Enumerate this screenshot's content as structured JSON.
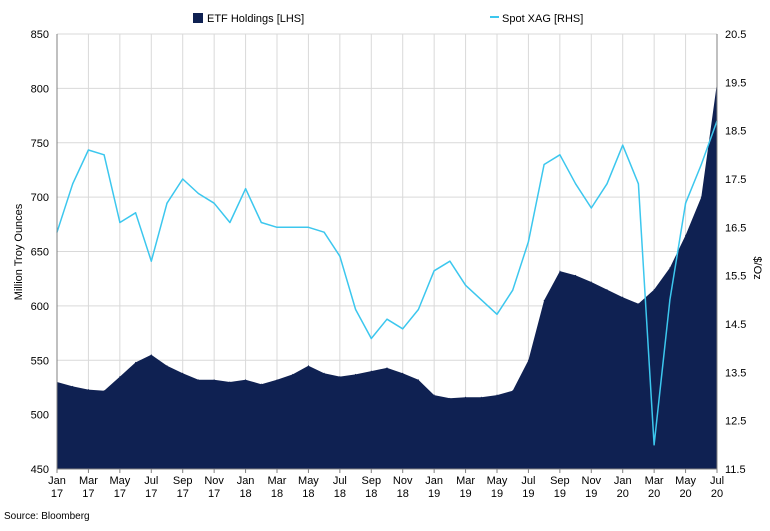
{
  "chart_data": {
    "type": "area",
    "title": "",
    "source": "Source: Bloomberg",
    "ylabel_left": "Million Troy  Ounces",
    "ylabel_right": "$/Oz",
    "ylim_left": [
      450,
      850
    ],
    "ylim_right": [
      11.5,
      20.5
    ],
    "yticks_left": [
      "850",
      "800",
      "750",
      "700",
      "650",
      "600",
      "550",
      "500",
      "450"
    ],
    "yticks_right": [
      "20.5",
      "19.5",
      "18.5",
      "17.5",
      "16.5",
      "15.5",
      "14.5",
      "13.5",
      "12.5",
      "11.5"
    ],
    "grid": true,
    "legend_position": "top",
    "x_categories": [
      [
        "Jan",
        "17"
      ],
      [
        "Mar",
        "17"
      ],
      [
        "May",
        "17"
      ],
      [
        "Jul",
        "17"
      ],
      [
        "Sep",
        "17"
      ],
      [
        "Nov",
        "17"
      ],
      [
        "Jan",
        "18"
      ],
      [
        "Mar",
        "18"
      ],
      [
        "May",
        "18"
      ],
      [
        "Jul",
        "18"
      ],
      [
        "Sep",
        "18"
      ],
      [
        "Nov",
        "18"
      ],
      [
        "Jan",
        "19"
      ],
      [
        "Mar",
        "19"
      ],
      [
        "May",
        "19"
      ],
      [
        "Jul",
        "19"
      ],
      [
        "Sep",
        "19"
      ],
      [
        "Nov",
        "19"
      ],
      [
        "Jan",
        "20"
      ],
      [
        "Mar",
        "20"
      ],
      [
        "May",
        "20"
      ],
      [
        "Jul",
        "20"
      ]
    ],
    "series": [
      {
        "name": "ETF Holdings [LHS]",
        "axis": "left",
        "kind": "area",
        "color": "#0f2152",
        "x": [
          "2017-01",
          "2017-02",
          "2017-03",
          "2017-04",
          "2017-05",
          "2017-06",
          "2017-07",
          "2017-08",
          "2017-09",
          "2017-10",
          "2017-11",
          "2017-12",
          "2018-01",
          "2018-02",
          "2018-03",
          "2018-04",
          "2018-05",
          "2018-06",
          "2018-07",
          "2018-08",
          "2018-09",
          "2018-10",
          "2018-11",
          "2018-12",
          "2019-01",
          "2019-02",
          "2019-03",
          "2019-04",
          "2019-05",
          "2019-06",
          "2019-07",
          "2019-08",
          "2019-09",
          "2019-10",
          "2019-11",
          "2019-12",
          "2020-01",
          "2020-02",
          "2020-03",
          "2020-04",
          "2020-05",
          "2020-06",
          "2020-07"
        ],
        "values": [
          530,
          526,
          523,
          522,
          535,
          548,
          555,
          545,
          538,
          532,
          532,
          530,
          532,
          528,
          532,
          537,
          545,
          538,
          535,
          537,
          540,
          543,
          538,
          532,
          518,
          515,
          516,
          516,
          518,
          522,
          550,
          605,
          632,
          628,
          622,
          615,
          608,
          602,
          615,
          635,
          665,
          700,
          805
        ]
      },
      {
        "name": "Spot XAG [RHS]",
        "axis": "right",
        "kind": "line",
        "color": "#3cc7ee",
        "x": [
          "2017-01",
          "2017-02",
          "2017-03",
          "2017-04",
          "2017-05",
          "2017-06",
          "2017-07",
          "2017-08",
          "2017-09",
          "2017-10",
          "2017-11",
          "2017-12",
          "2018-01",
          "2018-02",
          "2018-03",
          "2018-04",
          "2018-05",
          "2018-06",
          "2018-07",
          "2018-08",
          "2018-09",
          "2018-10",
          "2018-11",
          "2018-12",
          "2019-01",
          "2019-02",
          "2019-03",
          "2019-04",
          "2019-05",
          "2019-06",
          "2019-07",
          "2019-08",
          "2019-09",
          "2019-10",
          "2019-11",
          "2019-12",
          "2020-01",
          "2020-02",
          "2020-03",
          "2020-04",
          "2020-05",
          "2020-06",
          "2020-07"
        ],
        "values": [
          16.4,
          17.4,
          18.1,
          18.0,
          16.6,
          16.8,
          15.8,
          17.0,
          17.5,
          17.2,
          17.0,
          16.6,
          17.3,
          16.6,
          16.5,
          16.5,
          16.5,
          16.4,
          15.9,
          14.8,
          14.2,
          14.6,
          14.4,
          14.8,
          15.6,
          15.8,
          15.3,
          15.0,
          14.7,
          15.2,
          16.2,
          17.8,
          18.0,
          17.4,
          16.9,
          17.4,
          18.2,
          17.4,
          12.0,
          15.0,
          17.0,
          17.8,
          18.7
        ]
      }
    ]
  }
}
